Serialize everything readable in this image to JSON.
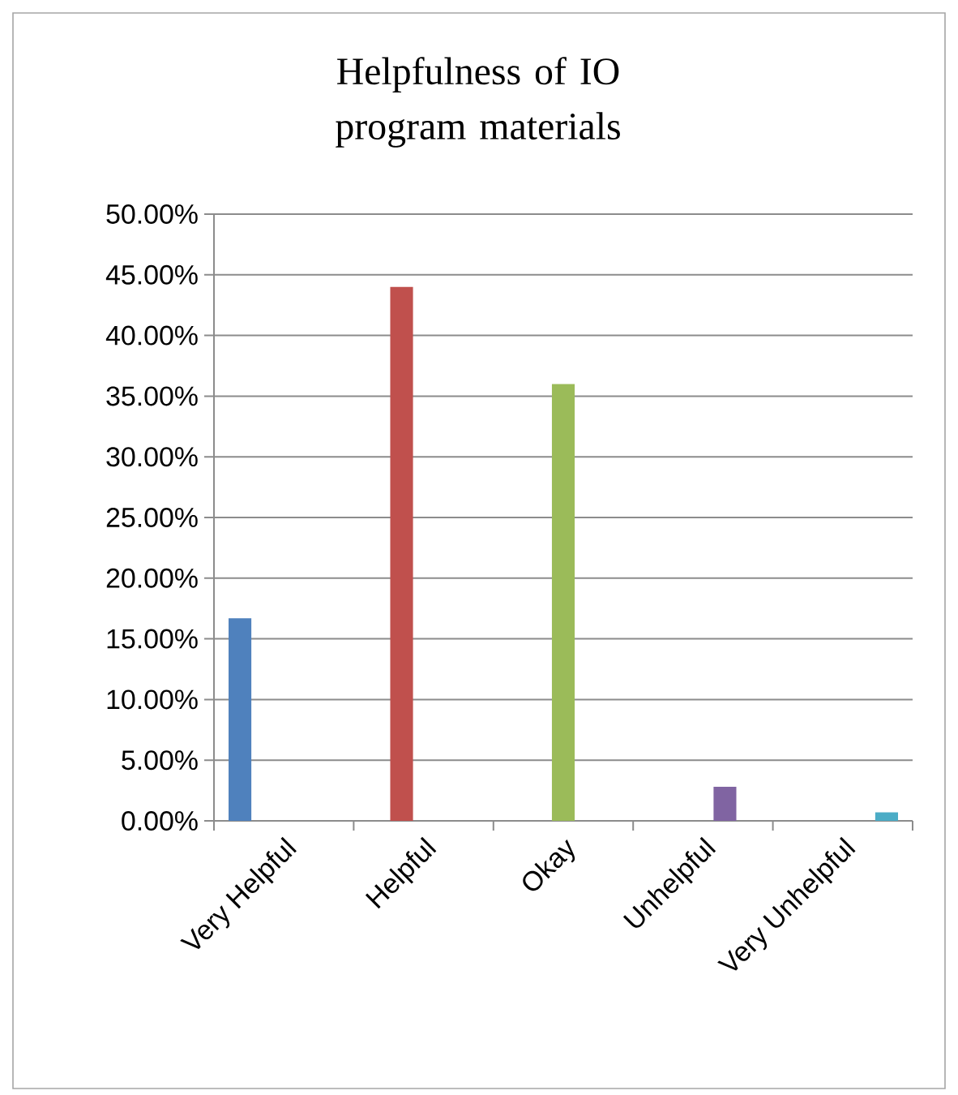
{
  "chart_data": {
    "type": "bar",
    "title": "Helpfulness of IO program materials",
    "categories": [
      "Very Helpful",
      "Helpful",
      "Okay",
      "Unhelpful",
      "Very Unhelpful"
    ],
    "values": [
      16.7,
      44.0,
      36.0,
      2.8,
      0.7
    ],
    "colors": [
      "#4f81bd",
      "#c0504d",
      "#9bbb59",
      "#8064a2",
      "#4bacc6"
    ],
    "ylim": [
      0,
      50
    ],
    "yticks": [
      {
        "value": 0,
        "label": "0.00%"
      },
      {
        "value": 5,
        "label": "5.00%"
      },
      {
        "value": 10,
        "label": "10.00%"
      },
      {
        "value": 15,
        "label": "15.00%"
      },
      {
        "value": 20,
        "label": "20.00%"
      },
      {
        "value": 25,
        "label": "25.00%"
      },
      {
        "value": 30,
        "label": "30.00%"
      },
      {
        "value": 35,
        "label": "35.00%"
      },
      {
        "value": 40,
        "label": "40.00%"
      },
      {
        "value": 45,
        "label": "45.00%"
      },
      {
        "value": 50,
        "label": "50.00%"
      }
    ],
    "grid": "y"
  }
}
